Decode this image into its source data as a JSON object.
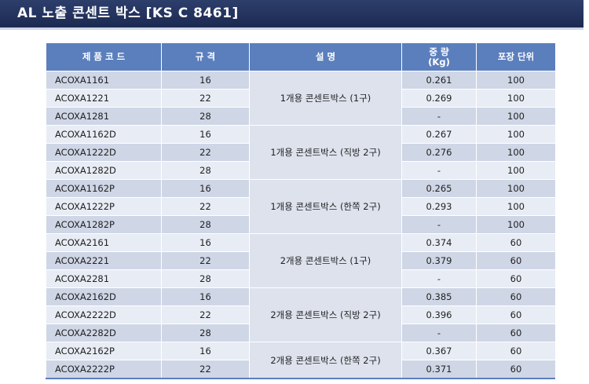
{
  "title": "AL 노출 콘센트 박스   [KS C 8461]",
  "headers": {
    "code": "제 품 코 드",
    "spec": "규     격",
    "desc": "설          명",
    "weight_line1": "중 량",
    "weight_line2": "(Kg)",
    "pack": "포장 단위"
  },
  "groups": [
    {
      "desc": "1개용 콘센트박스 (1구)",
      "rows": [
        {
          "code": "ACOXA1161",
          "spec": "16",
          "weight": "0.261",
          "pack": "100"
        },
        {
          "code": "ACOXA1221",
          "spec": "22",
          "weight": "0.269",
          "pack": "100"
        },
        {
          "code": "ACOXA1281",
          "spec": "28",
          "weight": "-",
          "pack": "100"
        }
      ]
    },
    {
      "desc": "1개용 콘센트박스 (직방 2구)",
      "rows": [
        {
          "code": "ACOXA1162D",
          "spec": "16",
          "weight": "0.267",
          "pack": "100"
        },
        {
          "code": "ACOXA1222D",
          "spec": "22",
          "weight": "0.276",
          "pack": "100"
        },
        {
          "code": "ACOXA1282D",
          "spec": "28",
          "weight": "-",
          "pack": "100"
        }
      ]
    },
    {
      "desc": "1개용 콘센트박스 (한쪽 2구)",
      "rows": [
        {
          "code": "ACOXA1162P",
          "spec": "16",
          "weight": "0.265",
          "pack": "100"
        },
        {
          "code": "ACOXA1222P",
          "spec": "22",
          "weight": "0.293",
          "pack": "100"
        },
        {
          "code": "ACOXA1282P",
          "spec": "28",
          "weight": "-",
          "pack": "100"
        }
      ]
    },
    {
      "desc": "2개용 콘센트박스 (1구)",
      "rows": [
        {
          "code": "ACOXA2161",
          "spec": "16",
          "weight": "0.374",
          "pack": "60"
        },
        {
          "code": "ACOXA2221",
          "spec": "22",
          "weight": "0.379",
          "pack": "60"
        },
        {
          "code": "ACOXA2281",
          "spec": "28",
          "weight": "-",
          "pack": "60"
        }
      ]
    },
    {
      "desc": "2개용 콘센트박스 (직방 2구)",
      "rows": [
        {
          "code": "ACOXA2162D",
          "spec": "16",
          "weight": "0.385",
          "pack": "60"
        },
        {
          "code": "ACOXA2222D",
          "spec": "22",
          "weight": "0.396",
          "pack": "60"
        },
        {
          "code": "ACOXA2282D",
          "spec": "28",
          "weight": "-",
          "pack": "60"
        }
      ]
    },
    {
      "desc": "2개용 콘센트박스 (한쪽 2구)",
      "rows": [
        {
          "code": "ACOXA2162P",
          "spec": "16",
          "weight": "0.367",
          "pack": "60"
        },
        {
          "code": "ACOXA2222P",
          "spec": "22",
          "weight": "0.371",
          "pack": "60"
        }
      ]
    }
  ]
}
